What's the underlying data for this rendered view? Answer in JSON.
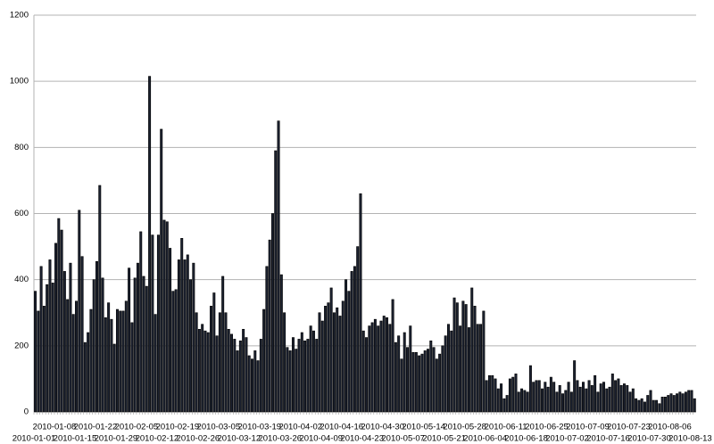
{
  "chart_data": {
    "type": "bar",
    "categories": [
      "2010-01-01",
      null,
      null,
      null,
      null,
      null,
      null,
      "2010-01-08",
      null,
      null,
      null,
      null,
      null,
      null,
      "2010-01-15",
      null,
      null,
      null,
      null,
      null,
      null,
      "2010-01-22",
      null,
      null,
      null,
      null,
      null,
      null,
      "2010-01-29",
      null,
      null,
      null,
      null,
      null,
      null,
      "2010-02-05",
      null,
      null,
      null,
      null,
      null,
      null,
      "2010-02-12",
      null,
      null,
      null,
      null,
      null,
      null,
      "2010-02-19",
      null,
      null,
      null,
      null,
      null,
      null,
      "2010-02-26",
      null,
      null,
      null,
      null,
      null,
      null,
      "2010-03-05",
      null,
      null,
      null,
      null,
      null,
      null,
      "2010-03-12",
      null,
      null,
      null,
      null,
      null,
      null,
      "2010-03-19",
      null,
      null,
      null,
      null,
      null,
      null,
      "2010-03-26",
      null,
      null,
      null,
      null,
      null,
      null,
      "2010-04-02",
      null,
      null,
      null,
      null,
      null,
      null,
      "2010-04-09",
      null,
      null,
      null,
      null,
      null,
      null,
      "2010-04-16",
      null,
      null,
      null,
      null,
      null,
      null,
      "2010-04-23",
      null,
      null,
      null,
      null,
      null,
      null,
      "2010-04-30",
      null,
      null,
      null,
      null,
      null,
      null,
      "2010-05-07",
      null,
      null,
      null,
      null,
      null,
      null,
      "2010-05-14",
      null,
      null,
      null,
      null,
      null,
      null,
      "2010-05-21",
      null,
      null,
      null,
      null,
      null,
      null,
      "2010-05-28",
      null,
      null,
      null,
      null,
      null,
      null,
      "2010-06-04",
      null,
      null,
      null,
      null,
      null,
      null,
      "2010-06-11",
      null,
      null,
      null,
      null,
      null,
      null,
      "2010-06-18",
      null,
      null,
      null,
      null,
      null,
      null,
      "2010-06-25",
      null,
      null,
      null,
      null,
      null,
      null,
      "2010-07-02",
      null,
      null,
      null,
      null,
      null,
      null,
      "2010-07-09",
      null,
      null,
      null,
      null,
      null,
      null,
      "2010-07-16",
      null,
      null,
      null,
      null,
      null,
      null,
      "2010-07-23",
      null,
      null,
      null,
      null,
      null,
      null,
      "2010-07-30",
      null,
      null,
      null,
      null,
      null,
      null,
      "2010-08-06",
      null,
      null,
      null,
      null,
      null,
      null,
      "2010-08-13",
      null
    ],
    "values": [
      365,
      305,
      440,
      320,
      385,
      460,
      390,
      510,
      585,
      550,
      425,
      340,
      450,
      295,
      335,
      610,
      470,
      210,
      240,
      310,
      400,
      455,
      685,
      405,
      285,
      330,
      280,
      205,
      310,
      305,
      305,
      335,
      435,
      270,
      405,
      450,
      545,
      410,
      380,
      1015,
      535,
      295,
      535,
      855,
      580,
      575,
      495,
      365,
      370,
      460,
      525,
      460,
      475,
      400,
      450,
      300,
      250,
      265,
      245,
      240,
      320,
      360,
      230,
      300,
      410,
      300,
      250,
      235,
      220,
      185,
      215,
      250,
      225,
      170,
      160,
      185,
      155,
      220,
      310,
      440,
      520,
      600,
      790,
      880,
      415,
      300,
      195,
      185,
      225,
      190,
      220,
      240,
      215,
      220,
      260,
      245,
      220,
      300,
      275,
      320,
      330,
      375,
      300,
      315,
      290,
      335,
      400,
      365,
      425,
      440,
      500,
      660,
      245,
      225,
      260,
      270,
      280,
      260,
      275,
      290,
      285,
      265,
      340,
      210,
      230,
      160,
      240,
      195,
      260,
      180,
      180,
      170,
      175,
      185,
      190,
      215,
      195,
      160,
      175,
      200,
      230,
      265,
      245,
      345,
      330,
      260,
      335,
      325,
      255,
      375,
      320,
      265,
      265,
      305,
      95,
      110,
      110,
      100,
      70,
      85,
      40,
      50,
      100,
      105,
      115,
      60,
      70,
      65,
      60,
      140,
      90,
      95,
      95,
      70,
      90,
      75,
      105,
      90,
      60,
      80,
      55,
      65,
      90,
      60,
      155,
      95,
      75,
      90,
      70,
      95,
      80,
      110,
      60,
      85,
      90,
      70,
      75,
      115,
      95,
      100,
      80,
      85,
      80,
      60,
      70,
      40,
      35,
      40,
      30,
      50,
      65,
      35,
      35,
      25,
      45,
      45,
      50,
      55,
      50,
      55,
      60,
      55,
      60,
      65,
      65,
      40
    ],
    "color": "#1c2230",
    "ylim": [
      0,
      1200
    ],
    "yticks": [
      0,
      200,
      400,
      600,
      800,
      1000,
      1200
    ],
    "grid": true
  }
}
